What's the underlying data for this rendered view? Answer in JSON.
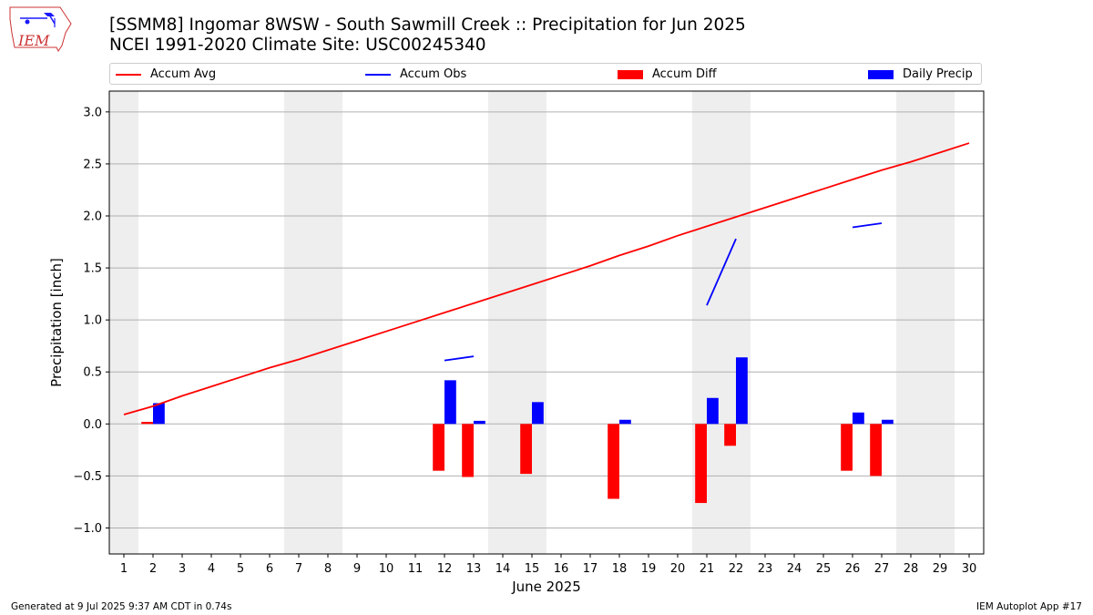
{
  "header": {
    "title_line1": "[SSMM8] Ingomar 8WSW - South Sawmill Creek :: Precipitation for Jun 2025",
    "title_line2": "NCEI 1991-2020 Climate Site: USC00245340"
  },
  "logo": {
    "text": "IEM",
    "icon": "iem-iowa-map-logo"
  },
  "footer": {
    "left": "Generated at 9 Jul 2025 9:37 AM CDT in 0.74s",
    "right": "IEM Autoplot App #17"
  },
  "colors": {
    "avg": "#ff0000",
    "obs": "#0000ff",
    "diff": "#ff0000",
    "daily": "#0000ff",
    "weekend": "#eeeeee",
    "grid": "#b0b0b0"
  },
  "chart_data": {
    "type": "bar",
    "xlabel": "June 2025",
    "ylabel": "Precipitation [inch]",
    "xlim": [
      0.5,
      30.5
    ],
    "ylim": [
      -1.25,
      3.2
    ],
    "yticks": [
      -1.0,
      -0.5,
      0.0,
      0.5,
      1.0,
      1.5,
      2.0,
      2.5,
      3.0
    ],
    "ytick_labels": [
      "−1.0",
      "−0.5",
      "0.0",
      "0.5",
      "1.0",
      "1.5",
      "2.0",
      "2.5",
      "3.0"
    ],
    "days": [
      1,
      2,
      3,
      4,
      5,
      6,
      7,
      8,
      9,
      10,
      11,
      12,
      13,
      14,
      15,
      16,
      17,
      18,
      19,
      20,
      21,
      22,
      23,
      24,
      25,
      26,
      27,
      28,
      29,
      30
    ],
    "weekend_spans": [
      [
        0.5,
        1.5
      ],
      [
        6.5,
        8.5
      ],
      [
        13.5,
        15.5
      ],
      [
        20.5,
        22.5
      ],
      [
        27.5,
        29.5
      ]
    ],
    "grid": true,
    "legend_position": "top",
    "series": [
      {
        "name": "Accum Avg",
        "kind": "line",
        "values": [
          0.09,
          0.17,
          0.27,
          0.36,
          0.45,
          0.54,
          0.62,
          0.71,
          0.8,
          0.89,
          0.98,
          1.07,
          1.16,
          1.25,
          1.34,
          1.43,
          1.52,
          1.62,
          1.71,
          1.81,
          1.9,
          1.99,
          2.08,
          2.17,
          2.26,
          2.35,
          2.44,
          2.52,
          2.61,
          2.7
        ]
      },
      {
        "name": "Accum Obs",
        "kind": "line",
        "values": [
          null,
          null,
          null,
          null,
          null,
          null,
          null,
          null,
          null,
          null,
          null,
          0.61,
          0.65,
          null,
          null,
          null,
          null,
          null,
          null,
          null,
          1.14,
          1.78,
          null,
          null,
          null,
          1.89,
          1.93,
          null,
          null,
          null
        ]
      },
      {
        "name": "Accum Diff",
        "kind": "bar",
        "values": [
          null,
          0.02,
          null,
          null,
          null,
          null,
          null,
          null,
          null,
          null,
          null,
          -0.45,
          -0.51,
          null,
          -0.48,
          null,
          null,
          -0.72,
          null,
          null,
          -0.76,
          -0.21,
          null,
          null,
          null,
          -0.45,
          -0.5,
          null,
          null,
          null
        ]
      },
      {
        "name": "Daily Precip",
        "kind": "bar",
        "values": [
          null,
          0.2,
          null,
          null,
          null,
          null,
          null,
          null,
          null,
          null,
          null,
          0.42,
          0.03,
          null,
          0.21,
          null,
          null,
          0.04,
          null,
          null,
          0.25,
          0.64,
          null,
          null,
          null,
          0.11,
          0.04,
          null,
          null,
          null
        ]
      }
    ]
  }
}
